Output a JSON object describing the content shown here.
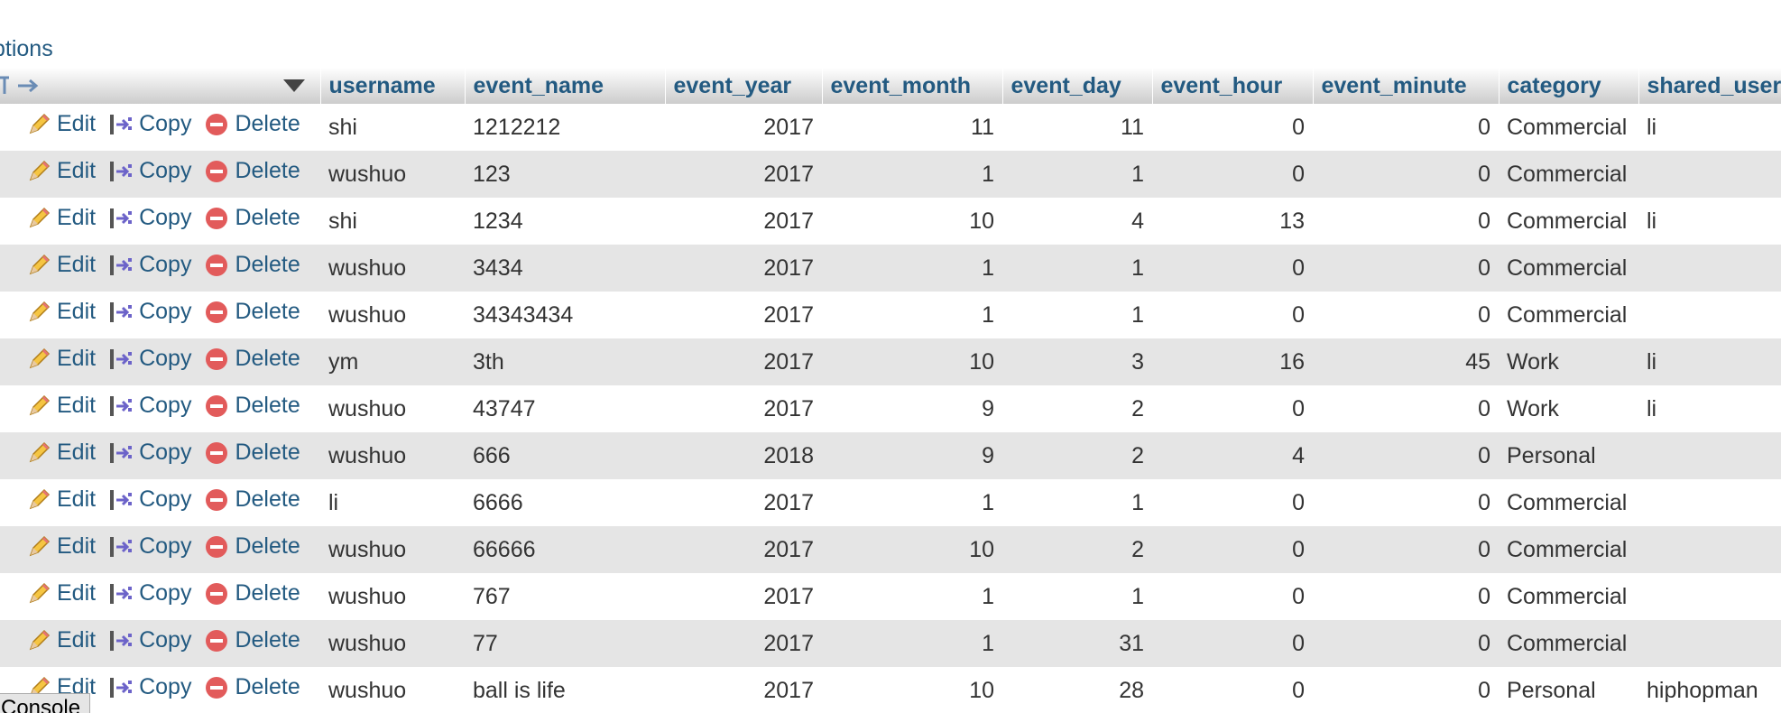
{
  "options_label": "ptions",
  "columns": [
    "username",
    "event_name",
    "event_year",
    "event_month",
    "event_day",
    "event_hour",
    "event_minute",
    "category",
    "shared_user"
  ],
  "actions": {
    "edit": "Edit",
    "copy": "Copy",
    "delete": "Delete"
  },
  "rows": [
    {
      "username": "shi",
      "event_name": "1212212",
      "event_year": "2017",
      "event_month": "11",
      "event_day": "11",
      "event_hour": "0",
      "event_minute": "0",
      "category": "Commercial",
      "shared_user": "li"
    },
    {
      "username": "wushuo",
      "event_name": "123",
      "event_year": "2017",
      "event_month": "1",
      "event_day": "1",
      "event_hour": "0",
      "event_minute": "0",
      "category": "Commercial",
      "shared_user": ""
    },
    {
      "username": "shi",
      "event_name": "1234",
      "event_year": "2017",
      "event_month": "10",
      "event_day": "4",
      "event_hour": "13",
      "event_minute": "0",
      "category": "Commercial",
      "shared_user": "li"
    },
    {
      "username": "wushuo",
      "event_name": "3434",
      "event_year": "2017",
      "event_month": "1",
      "event_day": "1",
      "event_hour": "0",
      "event_minute": "0",
      "category": "Commercial",
      "shared_user": ""
    },
    {
      "username": "wushuo",
      "event_name": "34343434",
      "event_year": "2017",
      "event_month": "1",
      "event_day": "1",
      "event_hour": "0",
      "event_minute": "0",
      "category": "Commercial",
      "shared_user": ""
    },
    {
      "username": "ym",
      "event_name": "3th",
      "event_year": "2017",
      "event_month": "10",
      "event_day": "3",
      "event_hour": "16",
      "event_minute": "45",
      "category": "Work",
      "shared_user": "li"
    },
    {
      "username": "wushuo",
      "event_name": "43747",
      "event_year": "2017",
      "event_month": "9",
      "event_day": "2",
      "event_hour": "0",
      "event_minute": "0",
      "category": "Work",
      "shared_user": "li"
    },
    {
      "username": "wushuo",
      "event_name": "666",
      "event_year": "2018",
      "event_month": "9",
      "event_day": "2",
      "event_hour": "4",
      "event_minute": "0",
      "category": "Personal",
      "shared_user": ""
    },
    {
      "username": "li",
      "event_name": "6666",
      "event_year": "2017",
      "event_month": "1",
      "event_day": "1",
      "event_hour": "0",
      "event_minute": "0",
      "category": "Commercial",
      "shared_user": ""
    },
    {
      "username": "wushuo",
      "event_name": "66666",
      "event_year": "2017",
      "event_month": "10",
      "event_day": "2",
      "event_hour": "0",
      "event_minute": "0",
      "category": "Commercial",
      "shared_user": ""
    },
    {
      "username": "wushuo",
      "event_name": "767",
      "event_year": "2017",
      "event_month": "1",
      "event_day": "1",
      "event_hour": "0",
      "event_minute": "0",
      "category": "Commercial",
      "shared_user": ""
    },
    {
      "username": "wushuo",
      "event_name": "77",
      "event_year": "2017",
      "event_month": "1",
      "event_day": "31",
      "event_hour": "0",
      "event_minute": "0",
      "category": "Commercial",
      "shared_user": ""
    },
    {
      "username": "wushuo",
      "event_name": "ball is life",
      "event_year": "2017",
      "event_month": "10",
      "event_day": "28",
      "event_hour": "0",
      "event_minute": "0",
      "category": "Personal",
      "shared_user": "hiphopman"
    }
  ],
  "console_label": "Console",
  "icons": {
    "edit": "pencil-icon",
    "copy": "copy-icon",
    "delete": "delete-icon",
    "sort": "sort-arrow-icon"
  },
  "colors": {
    "link": "#235a81",
    "row_alt": "#e5e5e5",
    "delete_red": "#d9534f"
  }
}
